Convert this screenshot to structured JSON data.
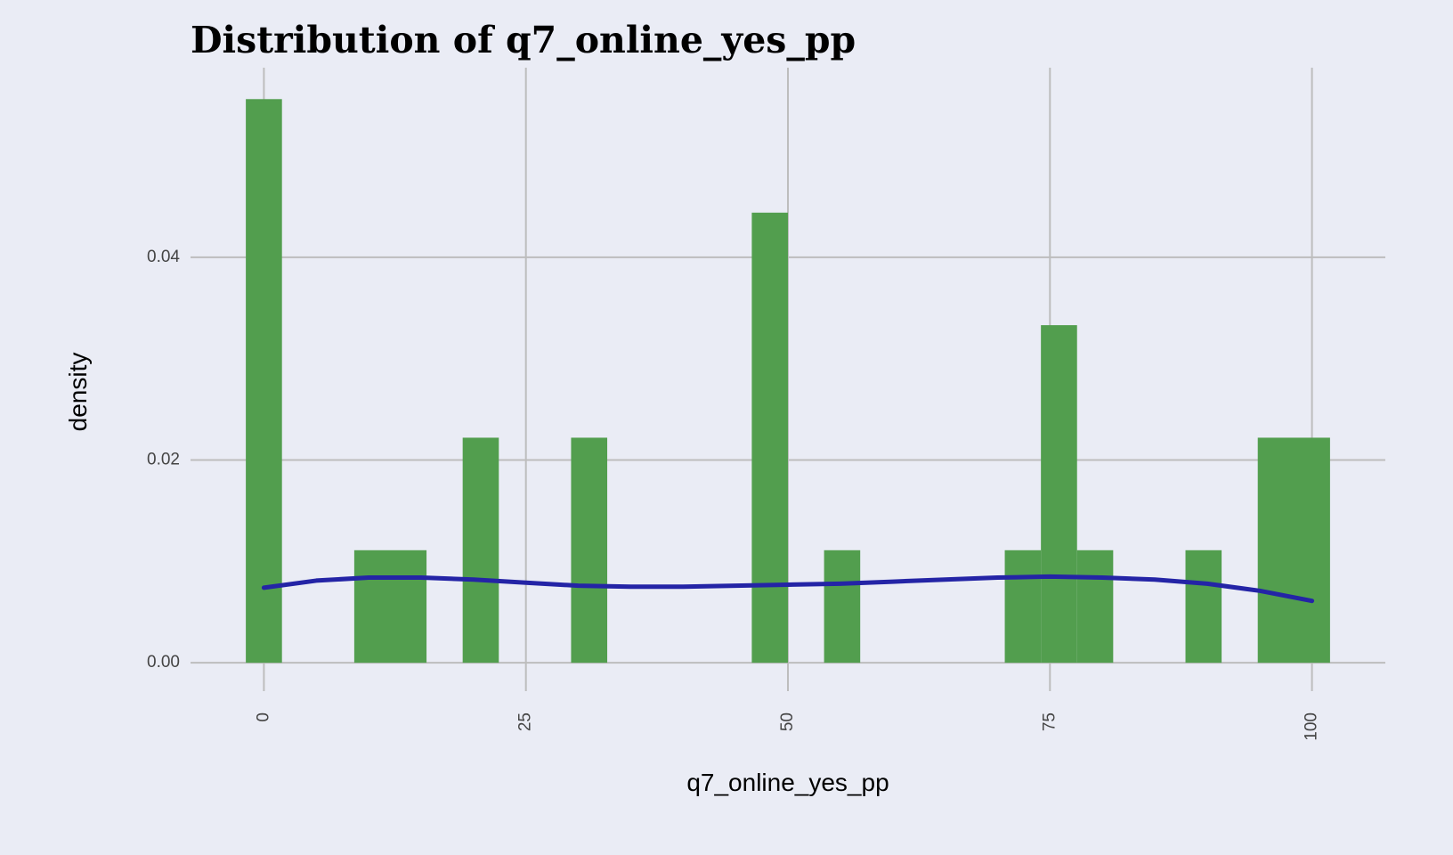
{
  "chart_data": {
    "type": "bar",
    "title": "Distribution of q7_online_yes_pp",
    "xlabel": "q7_online_yes_pp",
    "ylabel": "density",
    "xlim": [
      -7,
      107
    ],
    "ylim": [
      -0.0028,
      0.0587
    ],
    "x_ticks": [
      0,
      25,
      50,
      75,
      100
    ],
    "x_tick_labels": [
      "0",
      "25",
      "50",
      "75",
      "100"
    ],
    "y_ticks": [
      0,
      0.02,
      0.04
    ],
    "y_tick_labels": [
      "0.00",
      "0.02",
      "0.04"
    ],
    "grid": true,
    "bin_width": 3.448,
    "bins": [
      {
        "x0": -1.724,
        "x1": 1.724,
        "density": 0.0556
      },
      {
        "x0": 8.621,
        "x1": 15.517,
        "density": 0.0111
      },
      {
        "x0": 18.966,
        "x1": 22.414,
        "density": 0.0222
      },
      {
        "x0": 29.31,
        "x1": 32.759,
        "density": 0.0222
      },
      {
        "x0": 46.552,
        "x1": 50.0,
        "density": 0.0444
      },
      {
        "x0": 53.448,
        "x1": 56.897,
        "density": 0.0111
      },
      {
        "x0": 70.69,
        "x1": 74.138,
        "density": 0.0111
      },
      {
        "x0": 74.138,
        "x1": 77.586,
        "density": 0.0333
      },
      {
        "x0": 77.586,
        "x1": 81.034,
        "density": 0.0111
      },
      {
        "x0": 87.931,
        "x1": 91.379,
        "density": 0.0111
      },
      {
        "x0": 94.828,
        "x1": 101.724,
        "density": 0.0222
      }
    ],
    "density_curve": {
      "x": [
        0,
        5,
        10,
        15,
        20,
        25,
        30,
        35,
        40,
        45,
        50,
        55,
        60,
        65,
        70,
        75,
        80,
        85,
        90,
        95,
        100
      ],
      "y": [
        0.0074,
        0.0081,
        0.0084,
        0.0084,
        0.0082,
        0.0079,
        0.0076,
        0.0075,
        0.0075,
        0.0076,
        0.0077,
        0.0078,
        0.008,
        0.0082,
        0.0084,
        0.0085,
        0.0084,
        0.0082,
        0.0078,
        0.0071,
        0.0061
      ]
    },
    "colors": {
      "background": "#eaecf5",
      "grid": "#bdbdbd",
      "bar": "#529e4e",
      "curve": "#2424a6"
    }
  }
}
